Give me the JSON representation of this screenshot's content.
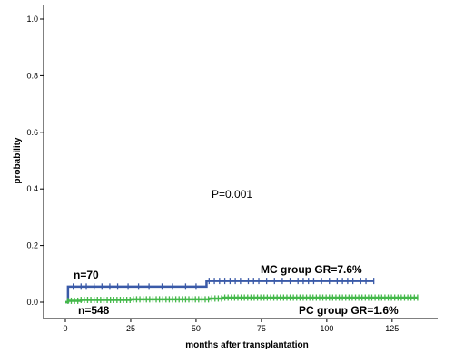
{
  "chart_data": {
    "type": "line",
    "subtype": "kaplan-meier step (cumulative incidence)",
    "xlabel": "months after transplantation",
    "ylabel": "probability",
    "xlim": [
      0,
      140
    ],
    "ylim": [
      0,
      1.0
    ],
    "x_ticks": [
      0,
      25,
      50,
      75,
      100,
      125
    ],
    "y_ticks": [
      0.0,
      0.2,
      0.4,
      0.6,
      0.8,
      1.0
    ],
    "y_tick_labels": [
      "0.0",
      "0.2",
      "0.4",
      "0.6",
      "0.8",
      "1.0"
    ],
    "grid": false,
    "series": [
      {
        "name": "MC group",
        "color": "#3a5aa8",
        "steps": [
          [
            0,
            0.0
          ],
          [
            1,
            0.055
          ],
          [
            54,
            0.055
          ],
          [
            54,
            0.075
          ],
          [
            118,
            0.075
          ]
        ],
        "censor_x": [
          3,
          6,
          8,
          11,
          14,
          17,
          20,
          24,
          28,
          32,
          37,
          41,
          46,
          50,
          55,
          57,
          59,
          61,
          63,
          65,
          67,
          70,
          72,
          74,
          77,
          80,
          83,
          86,
          89,
          91,
          93,
          95,
          98,
          101,
          104,
          106,
          108,
          110,
          113,
          115,
          118
        ],
        "n_label": "n=70",
        "end_label": "MC group GR=7.6%"
      },
      {
        "name": "PC group",
        "color": "#44b84a",
        "steps": [
          [
            0,
            0.0
          ],
          [
            1,
            0.005
          ],
          [
            6,
            0.008
          ],
          [
            25,
            0.01
          ],
          [
            55,
            0.013
          ],
          [
            60,
            0.016
          ],
          [
            135,
            0.016
          ]
        ],
        "censor_from": 1,
        "censor_to": 135,
        "censor_step": 1.25,
        "n_label": "n=548",
        "end_label": "PC group GR=1.6%"
      }
    ],
    "annotations": {
      "p_value": "P=0.001"
    }
  }
}
